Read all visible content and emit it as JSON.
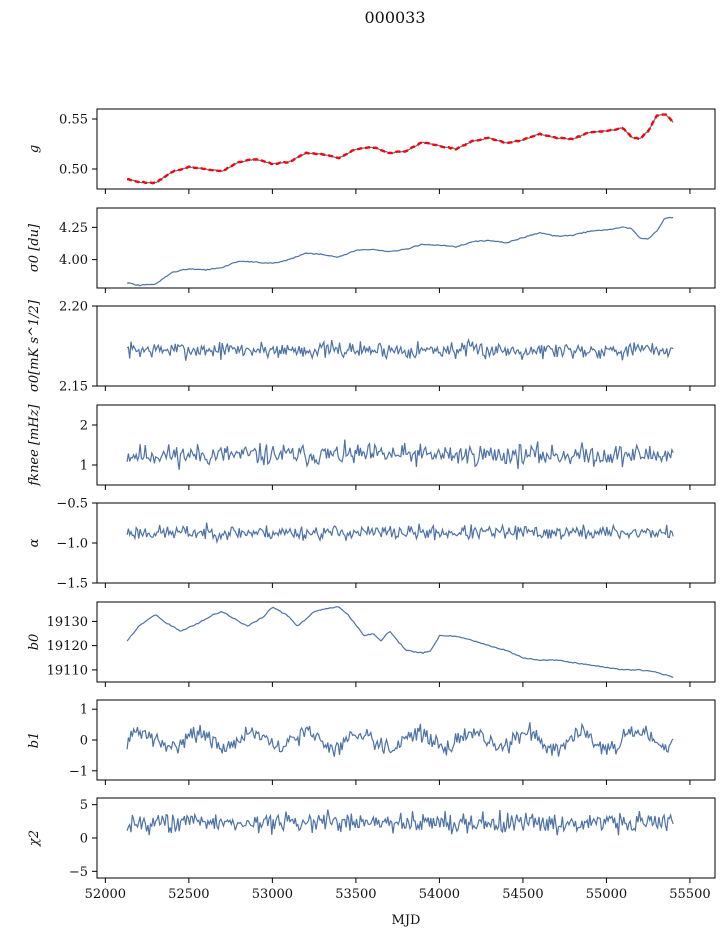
{
  "figure": {
    "title": "000033"
  },
  "chart_data": {
    "type": "line",
    "title": "000033",
    "xlabel": "MJD",
    "xlim": [
      51950,
      55650
    ],
    "xticks": [
      52000,
      52500,
      53000,
      53500,
      54000,
      54500,
      55000,
      55500
    ],
    "x_start": 52130,
    "x_end": 55400,
    "line_color": "#4c72a6",
    "overlay_color": "#ff0000",
    "grid": false,
    "panels": [
      {
        "id": "g",
        "ylabel": "g",
        "ylim": [
          0.48,
          0.56
        ],
        "yticks": [
          0.5,
          0.55
        ],
        "ytick_labels": [
          "0.50",
          "0.55"
        ],
        "has_overlay": true,
        "x": [
          52130,
          52200,
          52300,
          52400,
          52500,
          52600,
          52700,
          52800,
          52900,
          53000,
          53100,
          53200,
          53300,
          53400,
          53500,
          53600,
          53700,
          53800,
          53900,
          54000,
          54100,
          54200,
          54300,
          54400,
          54500,
          54600,
          54700,
          54800,
          54900,
          55000,
          55100,
          55150,
          55200,
          55250,
          55300,
          55350,
          55400
        ],
        "y": [
          0.49,
          0.487,
          0.486,
          0.497,
          0.502,
          0.5,
          0.498,
          0.507,
          0.51,
          0.505,
          0.507,
          0.516,
          0.515,
          0.511,
          0.52,
          0.522,
          0.516,
          0.518,
          0.527,
          0.523,
          0.52,
          0.528,
          0.531,
          0.526,
          0.529,
          0.535,
          0.531,
          0.53,
          0.537,
          0.538,
          0.541,
          0.532,
          0.53,
          0.538,
          0.553,
          0.555,
          0.547
        ]
      },
      {
        "id": "sigma0_du",
        "ylabel": "σ0 [du]",
        "ylim": [
          3.78,
          4.4
        ],
        "yticks": [
          4.0,
          4.25
        ],
        "ytick_labels": [
          "4.00",
          "4.25"
        ],
        "has_overlay": false,
        "x": [
          52130,
          52200,
          52300,
          52400,
          52500,
          52600,
          52700,
          52800,
          52900,
          53000,
          53100,
          53200,
          53300,
          53400,
          53500,
          53600,
          53700,
          53800,
          53900,
          54000,
          54100,
          54200,
          54300,
          54400,
          54500,
          54600,
          54700,
          54800,
          54900,
          55000,
          55100,
          55150,
          55200,
          55250,
          55300,
          55350,
          55400
        ],
        "y": [
          3.82,
          3.8,
          3.81,
          3.9,
          3.93,
          3.92,
          3.94,
          3.99,
          3.98,
          3.97,
          4.0,
          4.05,
          4.04,
          4.02,
          4.07,
          4.08,
          4.06,
          4.08,
          4.12,
          4.11,
          4.1,
          4.14,
          4.15,
          4.13,
          4.17,
          4.21,
          4.18,
          4.19,
          4.22,
          4.23,
          4.25,
          4.24,
          4.17,
          4.16,
          4.22,
          4.32,
          4.33
        ]
      },
      {
        "id": "sigma0_mks",
        "ylabel": "σ0[mK s^1/2]",
        "ylim": [
          2.15,
          2.2
        ],
        "yticks": [
          2.15,
          2.2
        ],
        "ytick_labels": [
          "2.15",
          "2.20"
        ],
        "has_overlay": false,
        "noise": true,
        "mean": 2.1725,
        "amp": 0.0035,
        "seed": 7
      },
      {
        "id": "f_knee",
        "ylabel": "fknee [mHz]",
        "ylim": [
          0.5,
          2.5
        ],
        "yticks": [
          1,
          2
        ],
        "ytick_labels": [
          "1",
          "2"
        ],
        "has_overlay": false,
        "noise": true,
        "mean": 1.25,
        "amp": 0.18,
        "seed": 11
      },
      {
        "id": "alpha",
        "ylabel": "α",
        "ylim": [
          -1.5,
          -0.5
        ],
        "yticks": [
          -1.5,
          -1.0,
          -0.5
        ],
        "ytick_labels": [
          "−1.5",
          "−1.0",
          "−0.5"
        ],
        "has_overlay": false,
        "noise": true,
        "mean": -0.87,
        "amp": 0.06,
        "seed": 23
      },
      {
        "id": "b0",
        "ylabel": "b0",
        "ylim": [
          19105,
          19138
        ],
        "yticks": [
          19110,
          19120,
          19130
        ],
        "ytick_labels": [
          "19110",
          "19120",
          "19130"
        ],
        "has_overlay": false,
        "x": [
          52130,
          52200,
          52300,
          52350,
          52450,
          52550,
          52650,
          52700,
          52800,
          52850,
          52950,
          53000,
          53100,
          53150,
          53250,
          53300,
          53400,
          53450,
          53550,
          53600,
          53650,
          53700,
          53800,
          53900,
          53950,
          54000,
          54100,
          54200,
          54300,
          54400,
          54500,
          54600,
          54700,
          54800,
          54900,
          55000,
          55100,
          55200,
          55300,
          55400
        ],
        "y": [
          19122,
          19128,
          19133,
          19130,
          19126,
          19129,
          19133,
          19134,
          19130,
          19128,
          19132,
          19136,
          19132,
          19128,
          19134,
          19135,
          19136,
          19133,
          19124,
          19125,
          19122,
          19126,
          19118,
          19117,
          19118,
          19124,
          19124,
          19122,
          19120,
          19118,
          19115,
          19114,
          19114,
          19113,
          19112,
          19111,
          19110,
          19110,
          19109,
          19107
        ]
      },
      {
        "id": "b1",
        "ylabel": "b1",
        "ylim": [
          -1.3,
          1.3
        ],
        "yticks": [
          -1,
          0,
          1
        ],
        "ytick_labels": [
          "−1",
          "0",
          "1"
        ],
        "has_overlay": false,
        "noise": true,
        "mean": 0.0,
        "amp": 0.18,
        "seed": 31,
        "wave": 0.25
      },
      {
        "id": "chi2",
        "ylabel": "χ2",
        "ylim": [
          -6,
          6
        ],
        "yticks": [
          -5,
          0,
          5
        ],
        "ytick_labels": [
          "−5",
          "0",
          "5"
        ],
        "has_overlay": false,
        "noise": true,
        "mean": 2.3,
        "amp": 1.0,
        "seed": 43
      }
    ]
  }
}
